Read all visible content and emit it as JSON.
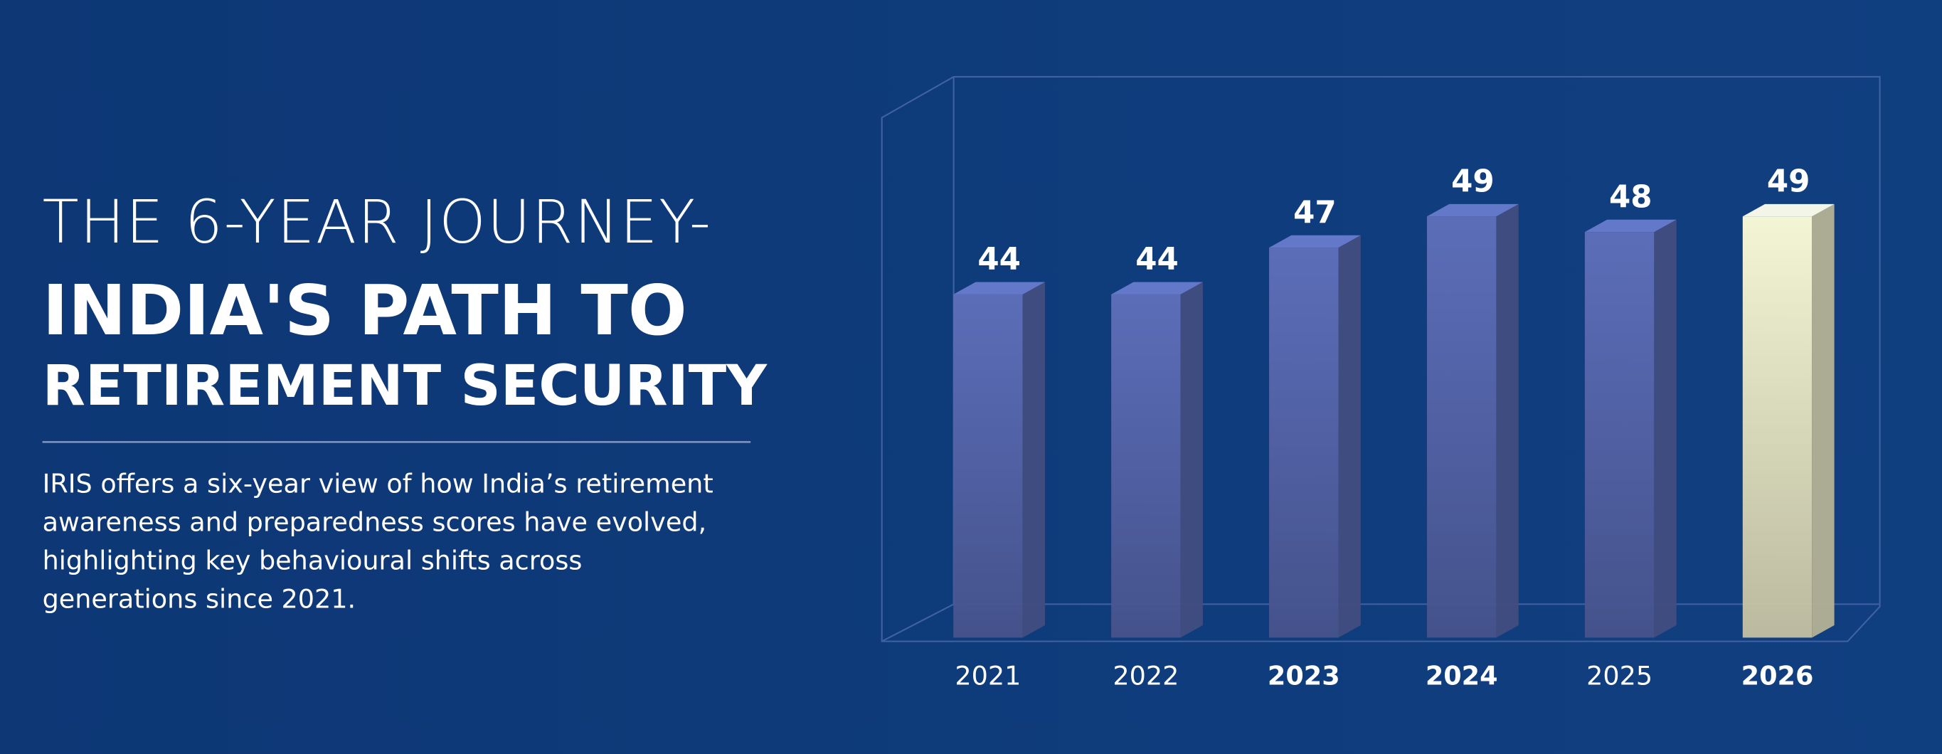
{
  "chart_data": {
    "type": "bar3d",
    "title": [
      "THE 6-YEAR JOURNEY-",
      "INDIA'S PATH TO",
      "RETIREMENT SECURITY"
    ],
    "description": [
      "IRIS offers a six-year view of how India’s retirement",
      "awareness and preparedness scores have evolved,",
      "highlighting key behavioural shifts across",
      "generations since 2021."
    ],
    "categories": [
      "2021",
      "2022",
      "2023",
      "2024",
      "2025",
      "2026"
    ],
    "category_weights": [
      "normal",
      "normal",
      "bold",
      "bold",
      "normal",
      "bold"
    ],
    "values": [
      44,
      44,
      47,
      49,
      48,
      49
    ],
    "colors": [
      "#5b6bb3",
      "#5b6bb3",
      "#5b6bb3",
      "#5b6bb3",
      "#5b6bb3",
      "#fbf6cf"
    ],
    "ylim": [
      22,
      52
    ]
  }
}
